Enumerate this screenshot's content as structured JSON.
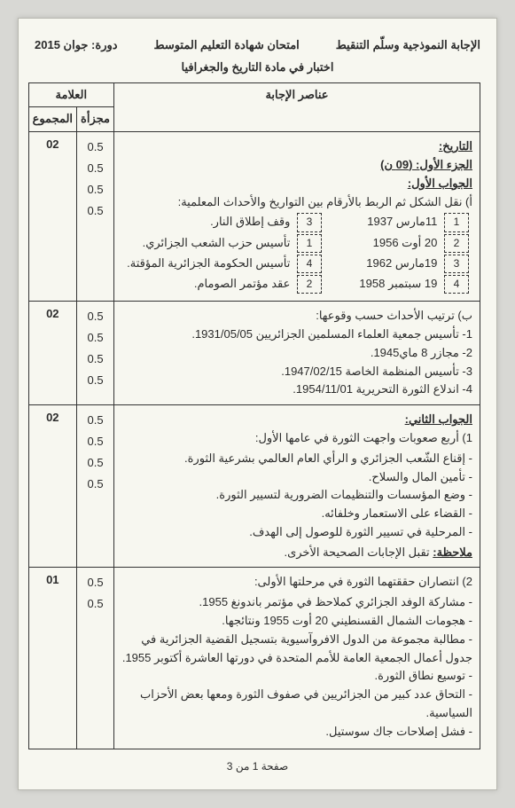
{
  "header": {
    "right": "الإجابة النموذجية وسلّم التنقيط",
    "center": "امتحان شهادة التعليم المتوسط",
    "left": "دورة: جوان 2015",
    "subject": "اختبار في مادة التاريخ والجغرافيا"
  },
  "table_headers": {
    "answers": "عناصر الإجابة",
    "mark_group": "العلامة",
    "partial": "مجزأة",
    "total": "المجموع"
  },
  "history_label": "التاريخ:",
  "part1": {
    "title": "الجزء الأول: (09 ن)",
    "answer1": {
      "title": "الجواب الأول:",
      "a_text": "أ) نقل الشكل ثم الربط بالأرقام بين التواريخ والأحداث المعلمية:",
      "rows": [
        {
          "ln": "1",
          "ld": "11مارس 1937",
          "rn": "3",
          "rd": "وقف إطلاق النار."
        },
        {
          "ln": "2",
          "ld": "20 أوت 1956",
          "rn": "1",
          "rd": "تأسيس حزب الشعب الجزائري."
        },
        {
          "ln": "3",
          "ld": "19مارس 1962",
          "rn": "4",
          "rd": "تأسيس الحكومة الجزائرية المؤقتة."
        },
        {
          "ln": "4",
          "ld": "19 سبتمبر 1958",
          "rn": "2",
          "rd": "عقد مؤتمر الصومام."
        }
      ],
      "a_partial": [
        "0.5",
        "0.5",
        "0.5",
        "0.5"
      ],
      "a_total": "02",
      "b_text": "ب) ترتيب الأحداث حسب وقوعها:",
      "b_items": [
        "1- تأسيس جمعية العلماء المسلمين الجزائريين 1931/05/05.",
        "2- مجازر 8 ماي1945.",
        "3- تأسيس المنظمة الخاصة 1947/02/15.",
        "4- اندلاع الثورة التحريرية 1954/11/01."
      ],
      "b_partial": [
        "0.5",
        "0.5",
        "0.5",
        "0.5"
      ],
      "b_total": "02"
    },
    "answer2": {
      "title": "الجواب الثاني:",
      "q1_text": "1) أربع صعوبات واجهت الثورة في عامها الأول:",
      "q1_items": [
        "إقناع الشّعب الجزائري و الرأي العام العالمي بشرعية الثورة.",
        "تأمين المال والسلاح.",
        "وضع المؤسسات والتنظيمات الضرورية لتسيير الثورة.",
        "القضاء على الاستعمار وخلفائه.",
        "المرحلية في تسيير الثورة للوصول إلى الهدف."
      ],
      "q1_note_label": "ملاحظة:",
      "q1_note": "تقبل الإجابات الصحيحة الأخرى.",
      "q1_partial": [
        "0.5",
        "0.5",
        "0.5",
        "0.5"
      ],
      "q1_total": "02",
      "q2_text": "2) انتصاران حققتهما الثورة في مرحلتها الأولى:",
      "q2_items": [
        "مشاركة الوفد الجزائري كملاحظ في مؤتمر باندونغ 1955.",
        "هجومات الشمال القسنطيني 20 أوت 1955 ونتائجها.",
        "مطالبة مجموعة من الدول الافروآسيوية بتسجيل القضية الجزائرية في جدول أعمال الجمعية العامة للأمم المتحدة في دورتها العاشرة أكتوبر 1955.",
        "توسيع نطاق الثورة.",
        "التحاق عدد كبير من الجزائريين في صفوف الثورة ومعها بعض الأحزاب السياسية.",
        "فشل إصلاحات جاك سوستيل."
      ],
      "q2_partial": [
        "0.5",
        "0.5"
      ],
      "q2_total": "01"
    }
  },
  "footer": {
    "page": "صفحة 1 من 3"
  }
}
